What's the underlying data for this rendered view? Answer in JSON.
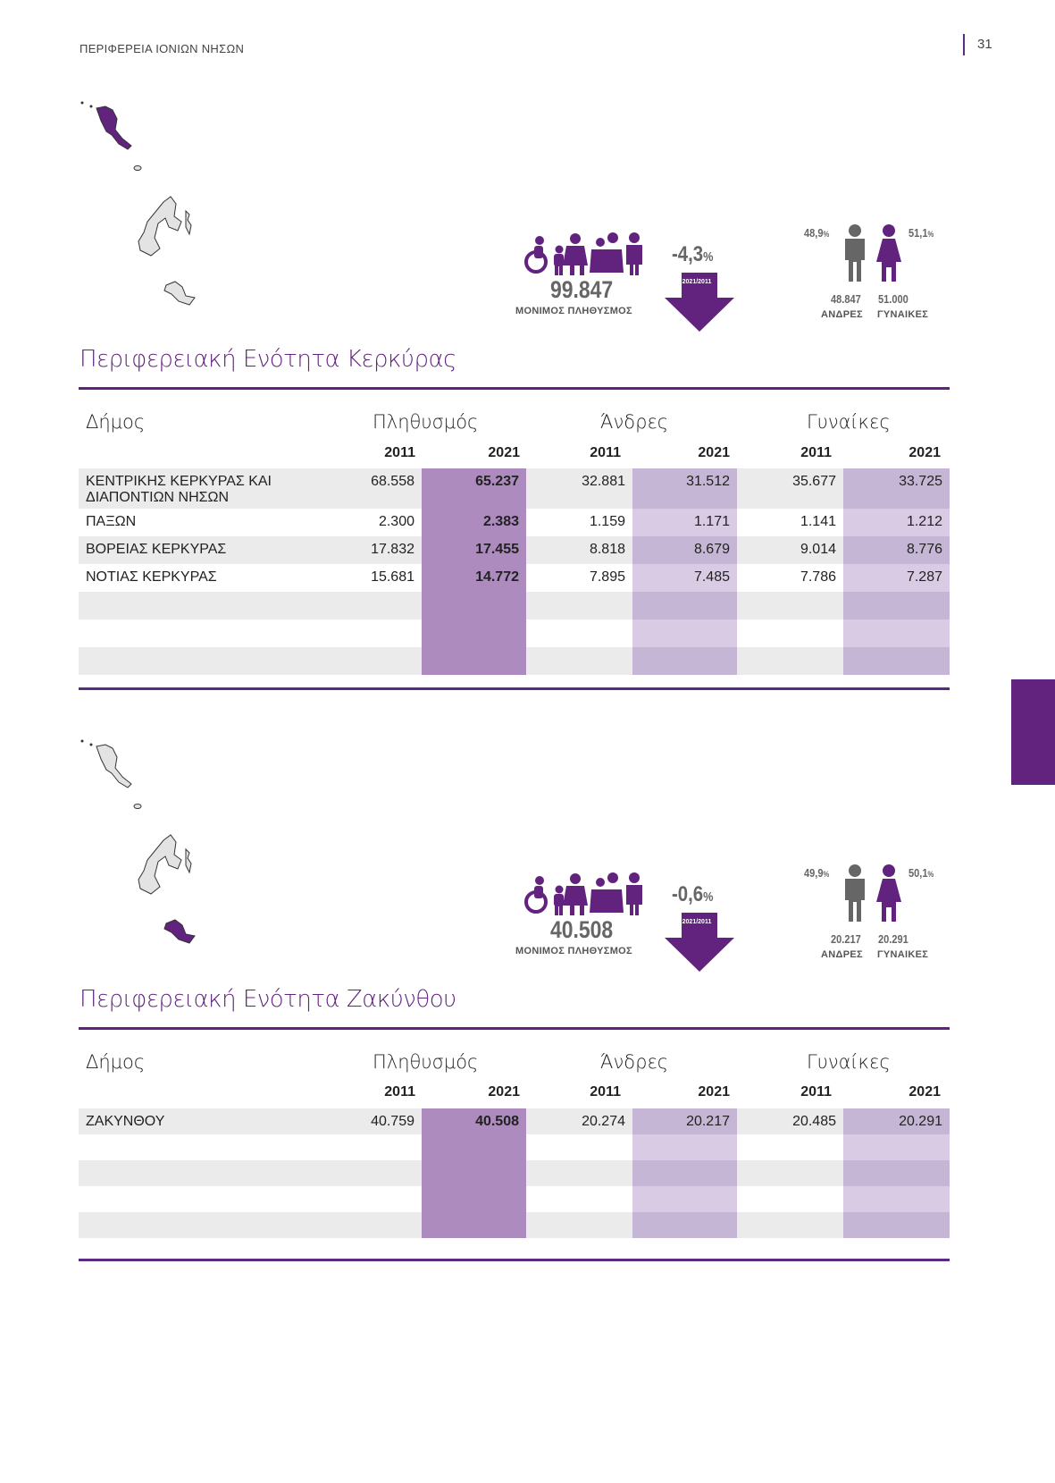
{
  "header": {
    "title": "ΠΕΡΙΦΕΡΕΙΑ ΙΟΝΙΩΝ ΝΗΣΩΝ",
    "page_number": "31"
  },
  "colors": {
    "accent": "#62237f",
    "pop2021": "#ad8bbf",
    "light": "#d9cbe4",
    "lightAlt": "#c6b6d6"
  },
  "columns": {
    "municipality": "Δήμος",
    "population": "Πληθυσμός",
    "men": "Άνδρες",
    "women": "Γυναίκες",
    "y2011": "2011",
    "y2021": "2021"
  },
  "sections": [
    {
      "title": "Περιφερειακή Ενότητα Κερκύρας",
      "population": "99.847",
      "population_label": "ΜΟΝΙΜΟΣ ΠΛΗΘΥΣΜΟΣ",
      "change": "-4,3",
      "change_unit": "%",
      "ratio_label": "2021/2011",
      "men_pct": "48,9",
      "women_pct": "51,1",
      "pct_unit": "%",
      "men": "48.847",
      "women": "51.000",
      "men_label": "ΑΝΔΡΕΣ",
      "women_label": "ΓΥΝΑΙΚΕΣ",
      "rows": [
        {
          "name": "ΚΕΝΤΡΙΚΗΣ ΚΕΡΚΥΡΑΣ ΚΑΙ ΔΙΑΠΟΝΤΙΩΝ ΝΗΣΩΝ",
          "p2011": "68.558",
          "p2021": "65.237",
          "m2011": "32.881",
          "m2021": "31.512",
          "f2011": "35.677",
          "f2021": "33.725"
        },
        {
          "name": "ΠΑΞΩΝ",
          "p2011": "2.300",
          "p2021": "2.383",
          "m2011": "1.159",
          "m2021": "1.171",
          "f2011": "1.141",
          "f2021": "1.212"
        },
        {
          "name": "ΒΟΡΕΙΑΣ ΚΕΡΚΥΡΑΣ",
          "p2011": "17.832",
          "p2021": "17.455",
          "m2011": "8.818",
          "m2021": "8.679",
          "f2011": "9.014",
          "f2021": "8.776"
        },
        {
          "name": "ΝΟΤΙΑΣ ΚΕΡΚΥΡΑΣ",
          "p2011": "15.681",
          "p2021": "14.772",
          "m2011": "7.895",
          "m2021": "7.485",
          "f2011": "7.786",
          "f2021": "7.287"
        }
      ],
      "empty_rows": 3
    },
    {
      "title": "Περιφερειακή Ενότητα Ζακύνθου",
      "population": "40.508",
      "population_label": "ΜΟΝΙΜΟΣ ΠΛΗΘΥΣΜΟΣ",
      "change": "-0,6",
      "change_unit": "%",
      "ratio_label": "2021/2011",
      "men_pct": "49,9",
      "women_pct": "50,1",
      "pct_unit": "%",
      "men": "20.217",
      "women": "20.291",
      "men_label": "ΑΝΔΡΕΣ",
      "women_label": "ΓΥΝΑΙΚΕΣ",
      "rows": [
        {
          "name": "ΖΑΚΥΝΘΟΥ",
          "p2011": "40.759",
          "p2021": "40.508",
          "m2011": "20.274",
          "m2021": "20.217",
          "f2011": "20.485",
          "f2021": "20.291"
        }
      ],
      "empty_rows": 4
    }
  ]
}
